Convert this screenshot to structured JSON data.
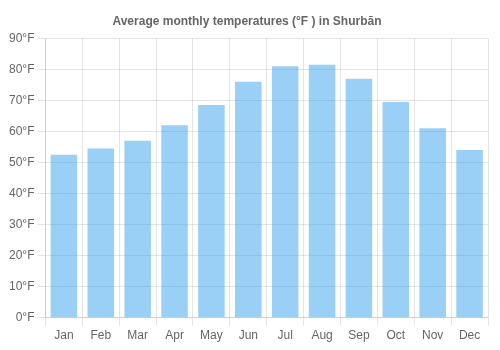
{
  "chart_data": {
    "type": "bar",
    "title": "Average monthly temperatures (°F ) in Shurbān",
    "categories": [
      "Jan",
      "Feb",
      "Mar",
      "Apr",
      "May",
      "Jun",
      "Jul",
      "Aug",
      "Sep",
      "Oct",
      "Nov",
      "Dec"
    ],
    "values": [
      52.5,
      54.5,
      57.0,
      62.0,
      68.5,
      76.0,
      81.0,
      81.5,
      77.0,
      69.5,
      61.0,
      54.0
    ],
    "ylim": [
      0,
      90
    ],
    "yticks": [
      {
        "value": 0,
        "label": "0°F"
      },
      {
        "value": 10,
        "label": "10°F"
      },
      {
        "value": 20,
        "label": "20°F"
      },
      {
        "value": 30,
        "label": "30°F"
      },
      {
        "value": 40,
        "label": "40°F"
      },
      {
        "value": 50,
        "label": "50°F"
      },
      {
        "value": 60,
        "label": "60°F"
      },
      {
        "value": 70,
        "label": "70°F"
      },
      {
        "value": 80,
        "label": "80°F"
      },
      {
        "value": 90,
        "label": "90°F"
      }
    ],
    "grid": true
  }
}
